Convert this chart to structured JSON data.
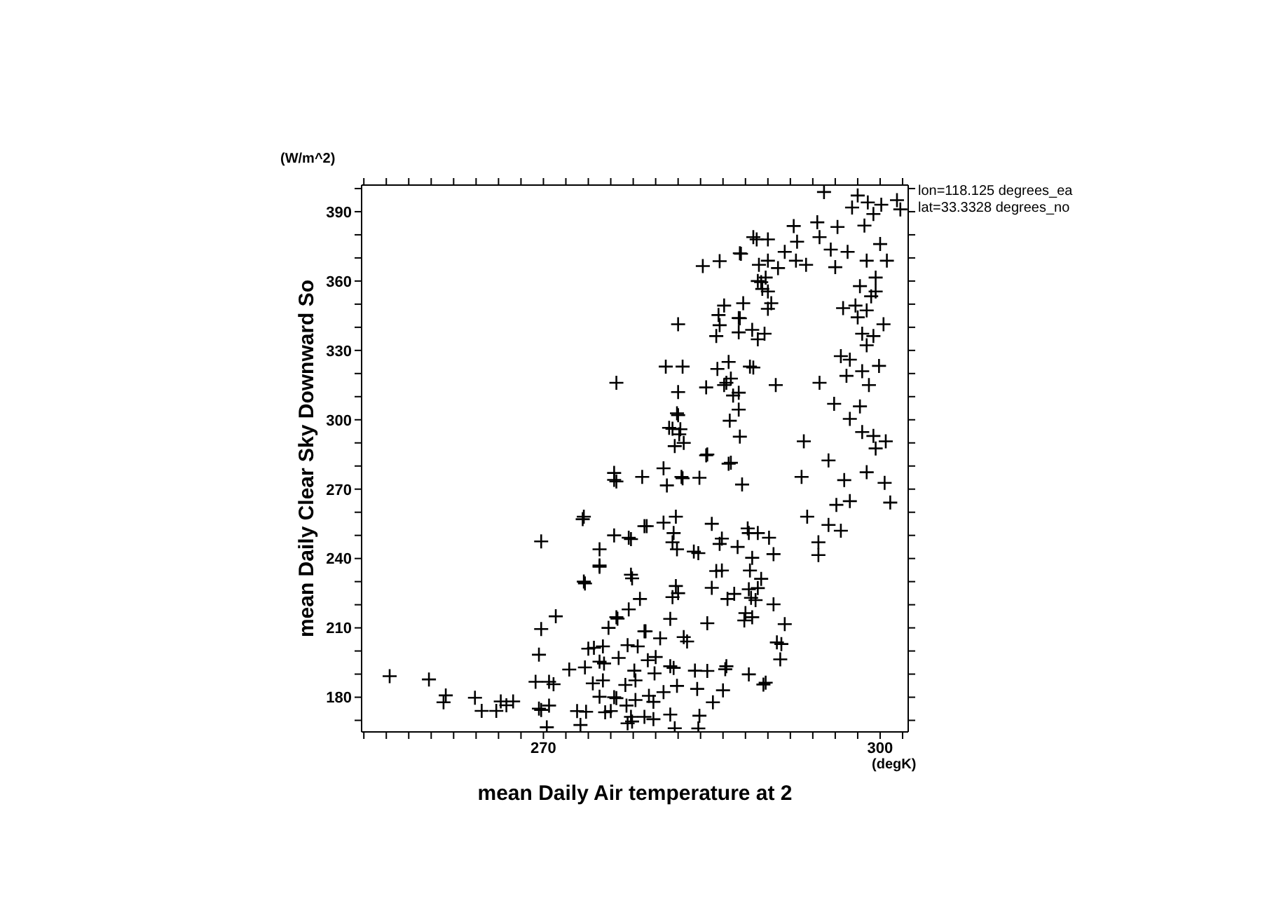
{
  "chart_data": {
    "type": "scatter",
    "xlabel": "mean Daily Air temperature at 2",
    "ylabel": "mean Daily Clear Sky Downward So",
    "annotations": [
      "(W/m^2)",
      "(degK)",
      "lon=118.125 degrees_ea",
      "lat=33.3328 degrees_no"
    ],
    "xlim": [
      253.8,
      302.5
    ],
    "ylim": [
      165,
      401.5
    ],
    "xticks": [
      {
        "value": 254,
        "label": null
      },
      {
        "value": 256,
        "label": null
      },
      {
        "value": 258,
        "label": null
      },
      {
        "value": 260,
        "label": null
      },
      {
        "value": 262,
        "label": null
      },
      {
        "value": 264,
        "label": null
      },
      {
        "value": 266,
        "label": null
      },
      {
        "value": 268,
        "label": null
      },
      270,
      {
        "value": 272,
        "label": null
      },
      {
        "value": 274,
        "label": null
      },
      {
        "value": 276,
        "label": null
      },
      {
        "value": 278,
        "label": null
      },
      {
        "value": 280,
        "label": null
      },
      {
        "value": 282,
        "label": null
      },
      {
        "value": 284,
        "label": null
      },
      {
        "value": 286,
        "label": null
      },
      {
        "value": 288,
        "label": null
      },
      {
        "value": 290,
        "label": null
      },
      {
        "value": 292,
        "label": null
      },
      {
        "value": 294,
        "label": null
      },
      {
        "value": 296,
        "label": null
      },
      {
        "value": 298,
        "label": null
      },
      300,
      {
        "value": 302,
        "label": null
      }
    ],
    "yticks": [
      {
        "value": 170,
        "label": null
      },
      180,
      {
        "value": 190,
        "label": null
      },
      {
        "value": 200,
        "label": null
      },
      210,
      {
        "value": 220,
        "label": null
      },
      {
        "value": 230,
        "label": null
      },
      240,
      {
        "value": 250,
        "label": null
      },
      {
        "value": 260,
        "label": null
      },
      270,
      {
        "value": 280,
        "label": null
      },
      {
        "value": 290,
        "label": null
      },
      300,
      {
        "value": 310,
        "label": null
      },
      {
        "value": 320,
        "label": null
      },
      330,
      {
        "value": 340,
        "label": null
      },
      {
        "value": 350,
        "label": null
      },
      360,
      {
        "value": 370,
        "label": null
      },
      {
        "value": 380,
        "label": null
      },
      390,
      {
        "value": 400,
        "label": null
      }
    ],
    "marker": "cross",
    "series": [
      {
        "color": "#000000",
        "x": [
          256.3,
          259.8,
          261.3,
          261.1,
          263.9,
          264.5,
          265.8,
          266.2,
          266.7,
          267.3,
          269.6,
          269.8,
          269.3,
          269.6,
          269.8,
          269.8,
          271.1,
          270.5,
          272.3,
          273,
          273.5,
          273.6,
          274,
          274.4,
          275,
          275,
          275.3,
          275.4,
          275.8,
          276,
          276.3,
          276.5,
          276.5,
          276.3,
          276.3,
          276.3,
          277.4,
          277.6,
          277.8,
          277.6,
          277.8,
          278.1,
          278.4,
          278.6,
          279,
          279,
          279.4,
          279.8,
          279,
          279.3,
          280.9,
          282.4,
          282.4,
          281.2,
          281,
          280.7,
          281.6,
          282,
          282.2,
          282,
          281.6,
          281.9,
          282,
          282.5,
          283.4,
          283.5,
          283.9,
          284.6,
          285.4,
          284.6,
          285.9,
          286,
          286.4,
          286.5,
          286.6,
          286.7,
          287.4,
          287.4,
          287.4,
          287.7,
          287.4,
          288.7,
          284.2,
          285.7,
          289.1,
          289.1,
          289.5,
          290,
          290,
          287.6,
          289,
          290,
          288.3,
          288.3,
          288,
          289.1,
          288.9,
          289.6,
          290.5,
          290.8,
          291.5,
          291.1,
          295,
          298,
          297.5,
          298.9,
          300.1,
          301.5,
          301.8,
          299.4,
          298.6,
          292.3,
          294.4,
          296.2,
          288.7,
          292.6,
          294.6,
          287.5,
          291.5,
          292.5,
          293.4,
          295.6,
          297.1,
          298.8,
          300.6,
          300,
          289.2,
          290.9,
          296,
          289.8,
          289.4,
          290,
          298.2,
          299.6,
          299.6,
          299.2,
          287.8,
          290.3,
          287.5,
          288.6,
          289.7,
          296.7,
          297.8,
          298,
          298.8,
          300.3,
          298.4,
          299.4,
          298.8,
          286.5,
          288.4,
          286.3,
          286.9,
          290.7,
          294.6,
          296.5,
          297.3,
          299.9,
          297,
          298.4,
          299,
          295.9,
          298.2,
          297.3,
          287.5,
          293.2,
          298.4,
          299.4,
          300.5,
          299.6,
          286.7,
          295.4,
          293,
          296.8,
          298.8,
          300.4,
          300.9,
          296.1,
          297.3,
          293.5,
          295.4,
          296.5,
          294.5,
          294.5,
          288.2,
          290.1,
          287.3,
          288.6,
          288.4,
          289.4,
          289.1,
          287,
          288.5,
          290.5,
          288.6,
          287.9,
          291.2,
          286.2,
          288.3,
          289.8,
          286.1,
          285.6,
          285.7,
          285.4,
          282,
          285.5,
          284.5,
          286.1,
          281.9,
          281.5,
          282.1,
          281.7,
          282.5,
          284.5,
          276.5,
          278.8,
          282.3,
          283.9,
          273.6,
          279.2,
          280.7,
          281.8,
          281.5,
          277.8,
          285,
          285.7,
          275,
          273.7,
          277.9,
          283.8,
          285.9,
          285,
          281.5,
          281.8,
          276.6,
          281.3,
          279.1,
          280.4,
          282.8,
          274.5,
          277.5,
          276.7,
          275,
          280,
          281.3,
          286.3,
          284.6,
          273.7,
          270.9,
          275.3,
          278.2,
          277.3,
          279.9,
          281.9,
          283.7,
          275,
          276.5,
          278.2,
          280.7,
          270.5,
          273.8,
          275.5,
          277.9,
          279.8,
          281.3,
          285.1,
          277.5,
          273.3,
          281.7,
          283.8,
          270.3
        ],
        "values": [
          189.1,
          187.7,
          180.8,
          177.8,
          179.8,
          174.1,
          174.1,
          178.2,
          176.5,
          178.2,
          175.1,
          174.5,
          186.7,
          198.4,
          209.5,
          247.4,
          215,
          186.7,
          192,
          174,
          257,
          230,
          201,
          186,
          244,
          237,
          202,
          194.6,
          210,
          174,
          180,
          316,
          214.6,
          277,
          274,
          250,
          176.4,
          249,
          233,
          218,
          171.5,
          191.5,
          202,
          222.5,
          254,
          208.5,
          180.6,
          178,
          171.5,
          196,
          323,
          323,
          274.7,
          296.5,
          271.6,
          279,
          192.7,
          312,
          295.9,
          302,
          251,
          244,
          225,
          206,
          243,
          191.5,
          172,
          285,
          234.6,
          212,
          248.6,
          183,
          222.5,
          281,
          299.6,
          317.8,
          304.4,
          311.7,
          337.8,
          272,
          344,
          322.6,
          366.5,
          368.6,
          334.8,
          360,
          356.6,
          348,
          368.8,
          371.8,
          378,
          378,
          251,
          226.7,
          216.4,
          251,
          222,
          185.5,
          241.9,
          203.7,
          211.6,
          196.4,
          398.5,
          397,
          391.8,
          394,
          393,
          395,
          391,
          389,
          384,
          383.8,
          385.4,
          383.4,
          379,
          377,
          379,
          372,
          372.6,
          368.8,
          367,
          373.6,
          372.6,
          368.8,
          368.8,
          376,
          367,
          365.6,
          366,
          361.5,
          359.5,
          355.5,
          357.8,
          355.5,
          361.5,
          353.4,
          350.4,
          350.4,
          343.9,
          338.9,
          337.2,
          348.3,
          349.4,
          344.3,
          347.3,
          341.3,
          337.2,
          336.2,
          332.2,
          325,
          323,
          316,
          310.5,
          315,
          316,
          327.5,
          326,
          323.3,
          319,
          321,
          315,
          306.9,
          305.8,
          300.4,
          292.7,
          290.7,
          294.7,
          293,
          290.7,
          287.6,
          281.4,
          282.4,
          275.3,
          273.9,
          277.3,
          272.7,
          264.2,
          263.2,
          264.8,
          258.1,
          254.5,
          252,
          247,
          241.5,
          253,
          249,
          245,
          240.3,
          234.8,
          231.2,
          227.2,
          224.7,
          223,
          220.2,
          214.6,
          213.2,
          203,
          192.1,
          189.9,
          186.3,
          349.4,
          345.3,
          340.9,
          336.2,
          341.3,
          322,
          314,
          315,
          302.8,
          296.1,
          293.7,
          288.6,
          290,
          284.6,
          273.3,
          275.3,
          275.3,
          274.9,
          258.1,
          254,
          255.5,
          258.1,
          247,
          248.4,
          255,
          246.3,
          236.4,
          229.2,
          231.4,
          242.3,
          234.8,
          227.3,
          223.3,
          228.1,
          214,
          213.9,
          208.5,
          205.5,
          204.1,
          201.4,
          202.5,
          197,
          195.4,
          197.4,
          193.4,
          193.4,
          191.4,
          192.9,
          185.6,
          187.3,
          187.3,
          185.3,
          190.3,
          184.9,
          183.6,
          180.2,
          179.6,
          178.8,
          182.2,
          176.4,
          173.7,
          173.5,
          169.5,
          170.5,
          172.5,
          177.8,
          168.7,
          168,
          166.6,
          166.5,
          167
        ]
      }
    ]
  }
}
